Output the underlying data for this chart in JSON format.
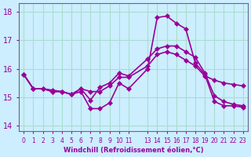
{
  "xlabel": "Windchill (Refroidissement éolien,°C)",
  "ylabel": "",
  "background_color": "#cceeff",
  "grid_color": "#aaddcc",
  "line_color": "#990099",
  "ylim": [
    13.8,
    18.3
  ],
  "xlim": [
    -0.5,
    23.5
  ],
  "yticks": [
    14,
    15,
    16,
    17,
    18
  ],
  "xtick_positions": [
    0,
    1,
    2,
    3,
    4,
    5,
    6,
    7,
    8,
    9,
    10,
    11,
    13,
    14,
    15,
    16,
    17,
    18,
    19,
    20,
    21,
    22,
    23
  ],
  "xtick_labels": [
    "0",
    "1",
    "2",
    "3",
    "4",
    "5",
    "6",
    "7",
    "8",
    "9",
    "10",
    "11",
    "13",
    "14",
    "15",
    "16",
    "17",
    "18",
    "19",
    "20",
    "21",
    "22",
    "23"
  ],
  "series": [
    {
      "x": [
        0,
        1,
        2,
        3,
        4,
        5,
        6,
        7,
        8,
        9,
        10,
        11,
        13,
        14,
        15,
        16,
        17,
        18,
        19,
        20,
        21,
        22,
        23
      ],
      "y": [
        15.8,
        15.3,
        15.3,
        15.2,
        15.2,
        15.1,
        15.2,
        14.6,
        14.6,
        14.8,
        15.5,
        15.3,
        16.0,
        17.8,
        17.85,
        17.6,
        17.4,
        16.2,
        15.8,
        14.85,
        14.7,
        14.7,
        14.65
      ],
      "marker": "D",
      "markersize": 3,
      "linewidth": 1.2
    },
    {
      "x": [
        0,
        1,
        2,
        3,
        4,
        5,
        6,
        7,
        8,
        9,
        10,
        11,
        13,
        14,
        15,
        16,
        17,
        18,
        19,
        20,
        21,
        22,
        23
      ],
      "y": [
        15.8,
        15.3,
        15.3,
        15.25,
        15.2,
        15.1,
        15.3,
        14.9,
        15.35,
        15.5,
        15.85,
        15.75,
        16.35,
        16.7,
        16.8,
        16.8,
        16.6,
        16.4,
        15.85,
        15.05,
        14.85,
        14.75,
        14.7
      ],
      "marker": "D",
      "markersize": 3,
      "linewidth": 1.2
    },
    {
      "x": [
        0,
        1,
        2,
        3,
        4,
        5,
        6,
        7,
        8,
        9,
        10,
        11,
        13,
        14,
        15,
        16,
        17,
        18,
        19,
        20,
        21,
        22,
        23
      ],
      "y": [
        15.8,
        15.3,
        15.3,
        15.2,
        15.2,
        15.1,
        15.3,
        15.2,
        15.2,
        15.4,
        15.7,
        15.7,
        16.1,
        16.5,
        16.6,
        16.5,
        16.3,
        16.1,
        15.75,
        15.6,
        15.5,
        15.45,
        15.4
      ],
      "marker": "D",
      "markersize": 3,
      "linewidth": 1.2
    }
  ]
}
